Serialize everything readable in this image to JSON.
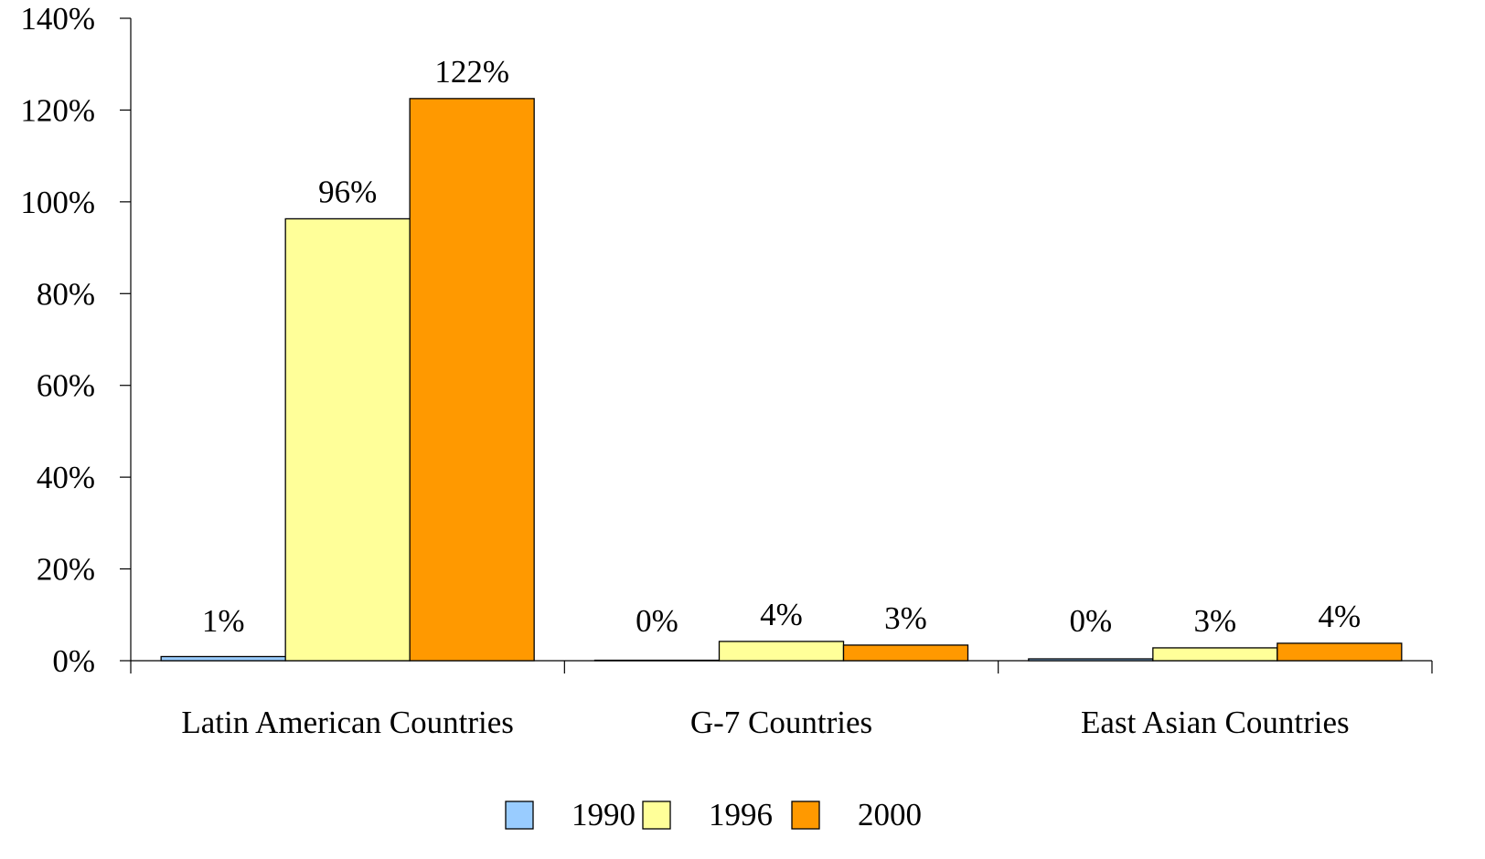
{
  "chart_data": {
    "type": "bar",
    "title": "",
    "xlabel": "",
    "ylabel": "",
    "ylim": [
      0,
      140
    ],
    "yticks": [
      0,
      20,
      40,
      60,
      80,
      100,
      120,
      140
    ],
    "ytick_labels": [
      "0%",
      "20%",
      "40%",
      "60%",
      "80%",
      "100%",
      "120%",
      "140%"
    ],
    "grid": false,
    "legend_position": "bottom",
    "categories": [
      "Latin American Countries",
      "G-7 Countries",
      "East Asian Countries"
    ],
    "series": [
      {
        "name": "1990",
        "color": "#99ccff",
        "values": [
          0.9,
          0.1,
          0.4
        ],
        "labels": [
          "1%",
          "0%",
          "0%"
        ]
      },
      {
        "name": "1996",
        "color": "#ffff99",
        "values": [
          96.3,
          4.2,
          2.8
        ],
        "labels": [
          "96%",
          "4%",
          "3%"
        ]
      },
      {
        "name": "2000",
        "color": "#ff9900",
        "values": [
          122.5,
          3.4,
          3.8
        ],
        "labels": [
          "122%",
          "3%",
          "4%"
        ]
      }
    ]
  }
}
